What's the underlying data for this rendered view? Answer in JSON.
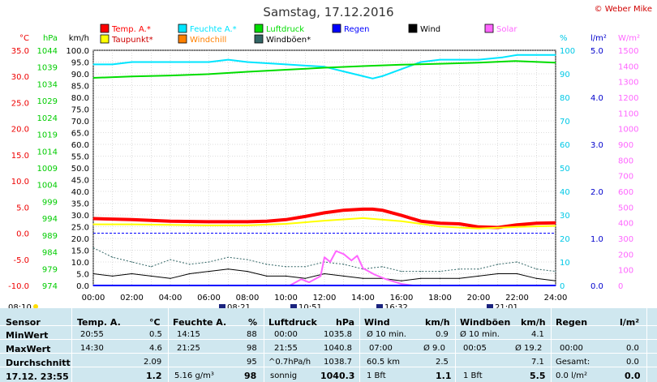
{
  "title": "Samstag, 17.12.2016",
  "copyright": "© Weber Mike",
  "chart_data": {
    "type": "line",
    "x_ticks": [
      "00:00",
      "02:00",
      "04:00",
      "06:00",
      "08:00",
      "10:00",
      "12:00",
      "14:00",
      "16:00",
      "18:00",
      "20:00",
      "22:00",
      "24:00"
    ],
    "axes": {
      "temp_c": {
        "label": "°C",
        "ticks": [
          "35.0",
          "30.0",
          "25.0",
          "20.0",
          "15.0",
          "10.0",
          "5.0",
          "0.0",
          "-5.0",
          "-10.0"
        ],
        "range": [
          -10,
          35
        ]
      },
      "hpa": {
        "label": "hPa",
        "ticks": [
          "1044",
          "1039",
          "1034",
          "1029",
          "1024",
          "1019",
          "1014",
          "1009",
          "1004",
          "999",
          "994",
          "989",
          "984",
          "979",
          "974"
        ],
        "range": [
          974,
          1044
        ]
      },
      "kmh": {
        "label": "km/h",
        "ticks": [
          "100.0",
          "95.0",
          "90.0",
          "85.0",
          "80.0",
          "75.0",
          "70.0",
          "65.0",
          "60.0",
          "55.0",
          "50.0",
          "45.0",
          "40.0",
          "35.0",
          "30.0",
          "25.0",
          "20.0",
          "15.0",
          "10.0",
          "5.0",
          "0.0"
        ],
        "range": [
          0,
          100
        ]
      },
      "percent": {
        "label": "%",
        "ticks": [
          "100",
          "90",
          "80",
          "70",
          "60",
          "50",
          "40",
          "30",
          "20",
          "10",
          "0"
        ],
        "range": [
          0,
          100
        ]
      },
      "rain": {
        "label": "l/m²",
        "ticks": [
          "5.0",
          "4.0",
          "3.0",
          "2.0",
          "1.0",
          "0.0"
        ],
        "range": [
          0,
          5
        ]
      },
      "solar": {
        "label": "W/m²",
        "ticks": [
          "1500",
          "1400",
          "1300",
          "1200",
          "1100",
          "1000",
          "900",
          "800",
          "700",
          "600",
          "500",
          "400",
          "300",
          "200",
          "100",
          "0"
        ],
        "range": [
          0,
          1500
        ]
      }
    },
    "legend": [
      {
        "name": "Temp. A.*",
        "color": "#ff0000"
      },
      {
        "name": "Feuchte A.*",
        "color": "#00e5ff"
      },
      {
        "name": "Luftdruck",
        "color": "#00dd00"
      },
      {
        "name": "Regen",
        "color": "#0000ff"
      },
      {
        "name": "Wind",
        "color": "#000000"
      },
      {
        "name": "Solar",
        "color": "#ff66ff"
      },
      {
        "name": "Taupunkt*",
        "color": "#ffff00"
      },
      {
        "name": "Windchill",
        "color": "#ff8000"
      },
      {
        "name": "Windböen*",
        "color": "#336666"
      }
    ],
    "series": [
      {
        "name": "Temp. A.*",
        "color": "#ff0000",
        "axis": "temp_c",
        "x": [
          0,
          2,
          4,
          6,
          8,
          9,
          10,
          11,
          12,
          13,
          14,
          14.5,
          15,
          16,
          17,
          18,
          19,
          20,
          21,
          22,
          23,
          24
        ],
        "y": [
          2.8,
          2.6,
          2.3,
          2.2,
          2.2,
          2.3,
          2.6,
          3.2,
          3.9,
          4.4,
          4.6,
          4.6,
          4.4,
          3.4,
          2.3,
          1.9,
          1.8,
          1.2,
          1.1,
          1.6,
          1.9,
          2.0
        ]
      },
      {
        "name": "Taupunkt*",
        "color": "#ffff00",
        "axis": "temp_c",
        "x": [
          0,
          2,
          4,
          6,
          8,
          10,
          12,
          14,
          16,
          18,
          20,
          22,
          24
        ],
        "y": [
          1.7,
          1.7,
          1.6,
          1.5,
          1.5,
          1.8,
          2.4,
          2.9,
          2.3,
          1.3,
          0.9,
          1.2,
          1.4
        ]
      },
      {
        "name": "Feuchte A.*",
        "color": "#00e5ff",
        "axis": "percent",
        "x": [
          0,
          1,
          2,
          4,
          6,
          7,
          8,
          10,
          12,
          13,
          14,
          14.5,
          15,
          16,
          17,
          18,
          20,
          21.25,
          22,
          24
        ],
        "y": [
          94,
          94,
          95,
          95,
          95,
          96,
          95,
          94,
          93,
          91,
          89,
          88,
          89,
          92,
          95,
          96,
          96,
          97,
          98,
          98
        ]
      },
      {
        "name": "Luftdruck",
        "color": "#00dd00",
        "axis": "hpa",
        "x": [
          0,
          2,
          4,
          6,
          8,
          10,
          12,
          14,
          16,
          18,
          20,
          21.9,
          24
        ],
        "y": [
          1035.8,
          1036.2,
          1036.5,
          1036.9,
          1037.6,
          1038.2,
          1038.8,
          1039.3,
          1039.7,
          1040.0,
          1040.3,
          1040.8,
          1040.3
        ]
      },
      {
        "name": "Wind",
        "color": "#000000",
        "axis": "kmh",
        "x": [
          0,
          1,
          2,
          3,
          4,
          5,
          6,
          7,
          8,
          9,
          10,
          11,
          12,
          13,
          14,
          15,
          16,
          17,
          18,
          19,
          20,
          21,
          22,
          23,
          24
        ],
        "y": [
          5,
          4,
          5,
          4,
          3,
          5,
          6,
          7,
          6,
          4,
          4,
          3,
          5,
          4,
          3,
          3,
          2,
          3,
          3,
          3,
          4,
          5,
          5,
          3,
          2
        ]
      },
      {
        "name": "Windböen*",
        "color": "#336666",
        "axis": "kmh",
        "x": [
          0,
          1,
          2,
          3,
          4,
          5,
          6,
          7,
          8,
          9,
          10,
          11,
          12,
          13,
          14,
          15,
          16,
          17,
          18,
          19,
          20,
          21,
          22,
          23,
          24
        ],
        "y": [
          16,
          12,
          10,
          8,
          11,
          9,
          10,
          12,
          11,
          9,
          8,
          8,
          10,
          9,
          7,
          8,
          6,
          6,
          6,
          7,
          7,
          9,
          10,
          7,
          6
        ]
      },
      {
        "name": "Solar",
        "color": "#ff66ff",
        "axis": "solar",
        "x": [
          0,
          10.2,
          10.8,
          11.2,
          11.8,
          12,
          12.3,
          12.6,
          13,
          13.4,
          13.7,
          14,
          14.6,
          15.2,
          16.0,
          16.6,
          24
        ],
        "y": [
          0,
          0,
          40,
          20,
          60,
          180,
          150,
          220,
          200,
          160,
          190,
          110,
          70,
          40,
          10,
          0,
          0
        ]
      },
      {
        "name": "Regen",
        "color": "#0000ff",
        "axis": "rain",
        "x": [
          0,
          24
        ],
        "y": [
          0,
          0
        ]
      }
    ],
    "grid": true
  },
  "sun_events": {
    "sunrise": "08:10",
    "sunset_moon": [
      {
        "label": "08:21"
      },
      {
        "label": "10:51"
      },
      {
        "label": "16:32"
      },
      {
        "label": "21:01"
      }
    ]
  },
  "table": {
    "sensor": {
      "header": "Sensor",
      "rows": [
        "MinWert",
        "MaxWert",
        "Durchschnitt",
        "17.12. 23:55"
      ]
    },
    "temp": {
      "header": "Temp. A.",
      "unit": "°C",
      "rows": [
        [
          "20:55",
          "0.5"
        ],
        [
          "14:30",
          "4.6"
        ],
        [
          "",
          "2.09"
        ],
        [
          "",
          "1.2"
        ]
      ]
    },
    "feuchte": {
      "header": "Feuchte A.",
      "unit": "%",
      "rows": [
        [
          "14:15",
          "88"
        ],
        [
          "21:25",
          "98"
        ],
        [
          "",
          "95"
        ],
        [
          "5.16 g/m³",
          "98"
        ]
      ]
    },
    "luftdruck": {
      "header": "Luftdruck",
      "unit": "hPa",
      "rows": [
        [
          "00:00",
          "1035.8"
        ],
        [
          "21:55",
          "1040.8"
        ],
        [
          "^0.7hPa/h",
          "1038.7"
        ],
        [
          "sonnig",
          "1040.3"
        ]
      ]
    },
    "wind": {
      "header": "Wind",
      "unit": "km/h",
      "rows": [
        [
          "Ø 10 min.",
          "0.9"
        ],
        [
          "07:00",
          "Ø 9.0"
        ],
        [
          "60.5 km",
          "2.5"
        ],
        [
          "1 Bft",
          "1.1"
        ]
      ]
    },
    "windboeen": {
      "header": "Windböen",
      "unit": "km/h",
      "rows": [
        [
          "Ø 10 min.",
          "4.1"
        ],
        [
          "00:05",
          "Ø 19.2"
        ],
        [
          "",
          "7.1"
        ],
        [
          "1 Bft",
          "5.5"
        ]
      ]
    },
    "regen": {
      "header": "Regen",
      "unit": "l/m²",
      "rows": [
        [
          "",
          ""
        ],
        [
          "00:00",
          "0.0"
        ],
        [
          "Gesamt:",
          "0.0"
        ],
        [
          "0.0 l/m²",
          "0.0"
        ]
      ]
    }
  }
}
